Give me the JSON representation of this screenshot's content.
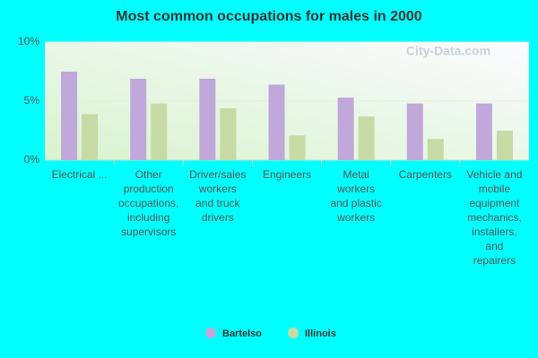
{
  "chart_data": {
    "type": "bar",
    "title": "Most common occupations for males in 2000",
    "watermark": "City-Data.com",
    "categories": [
      [
        "Electrical ..."
      ],
      [
        "Other",
        "production",
        "occupations,",
        "including",
        "supervisors"
      ],
      [
        "Driver/sales",
        "workers",
        "and truck",
        "drivers"
      ],
      [
        "Engineers"
      ],
      [
        "Metal",
        "workers",
        "and plastic",
        "workers"
      ],
      [
        "Carpenters"
      ],
      [
        "Vehicle and",
        "mobile",
        "equipment",
        "mechanics,",
        "installers,",
        "and",
        "repairers"
      ]
    ],
    "series": [
      {
        "name": "Bartelso",
        "color": "#c0a8da",
        "values": [
          7.5,
          6.9,
          6.9,
          6.4,
          5.3,
          4.8,
          4.8
        ]
      },
      {
        "name": "Illinois",
        "color": "#c6daa6",
        "values": [
          3.9,
          4.8,
          4.4,
          2.1,
          3.7,
          1.8,
          2.5
        ]
      }
    ],
    "ylim": [
      0,
      10
    ],
    "yticks": [
      {
        "value": 0,
        "label": "0%"
      },
      {
        "value": 5,
        "label": "5%"
      },
      {
        "value": 10,
        "label": "10%"
      }
    ],
    "grid": true
  }
}
